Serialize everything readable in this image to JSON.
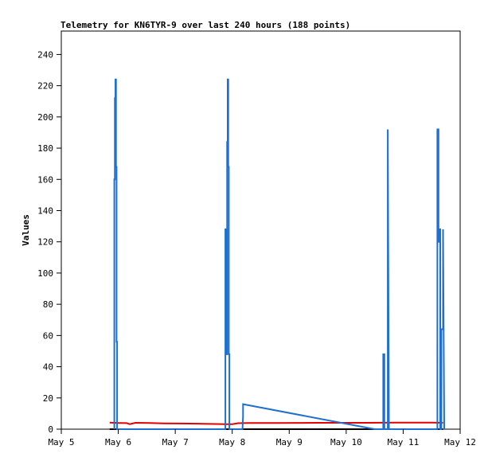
{
  "chart_data": {
    "type": "line",
    "title": "Telemetry for KN6TYR-9 over last 240 hours (188 points)",
    "ylabel": "Values",
    "xlabel": "",
    "ylim": [
      0,
      255
    ],
    "xlim": [
      0,
      7
    ],
    "y_ticks": [
      0,
      20,
      40,
      60,
      80,
      100,
      120,
      140,
      160,
      180,
      200,
      220,
      240
    ],
    "x_ticks": [
      {
        "label": "May 5",
        "value": 0
      },
      {
        "label": "May 6",
        "value": 1
      },
      {
        "label": "May 7",
        "value": 2
      },
      {
        "label": "May 8",
        "value": 3
      },
      {
        "label": "May 9",
        "value": 4
      },
      {
        "label": "May 10",
        "value": 5
      },
      {
        "label": "May 11",
        "value": 6
      },
      {
        "label": "May 12",
        "value": 7
      }
    ],
    "grid": false,
    "colors": {
      "red_series": "#e00000",
      "blue_series": "#1f6fd0",
      "black_series": "#000000"
    },
    "series": [
      {
        "color": "#e00000",
        "x": [
          0.85,
          1.0,
          1.15,
          1.2,
          1.3,
          1.55,
          1.8,
          2.1,
          2.4,
          2.7,
          2.9,
          3.0,
          3.1,
          3.3,
          3.8,
          4.5,
          5.3,
          5.9,
          6.5,
          6.7
        ],
        "y": [
          4.2,
          4.0,
          3.9,
          3.2,
          4.1,
          4.0,
          3.7,
          3.6,
          3.5,
          3.3,
          3.2,
          3.2,
          3.8,
          4.0,
          4.0,
          4.1,
          4.1,
          4.2,
          4.2,
          4.1
        ]
      },
      {
        "color": "#000000",
        "x": [
          0.85,
          6.7
        ],
        "y": [
          0,
          0
        ]
      },
      {
        "color": "#1f6fd0",
        "x": [
          0.93,
          0.93,
          0.94,
          0.94,
          0.95,
          0.95,
          0.96,
          0.96,
          0.97,
          0.97,
          0.98,
          0.98,
          0.99,
          0.99,
          2.88,
          2.88,
          2.89,
          2.89,
          2.9,
          2.9,
          2.91,
          2.91,
          2.92,
          2.92,
          2.93,
          2.93,
          2.94,
          2.94,
          2.95,
          2.95,
          3.18,
          3.19,
          3.19,
          5.5,
          5.65,
          5.65,
          5.67,
          5.67,
          5.73,
          5.73,
          5.75,
          6.6,
          6.6,
          6.62,
          6.62,
          6.63,
          6.63,
          6.65,
          6.65,
          6.67,
          6.67,
          6.7,
          6.7,
          6.72
        ],
        "y": [
          0,
          160,
          160,
          212,
          212,
          224,
          224,
          168,
          168,
          56,
          56,
          0,
          0,
          0,
          0,
          128,
          128,
          64,
          64,
          48,
          48,
          184,
          184,
          224,
          224,
          168,
          168,
          48,
          48,
          0,
          0,
          8,
          16,
          0,
          0,
          48,
          48,
          0,
          0,
          192,
          0,
          0,
          192,
          192,
          120,
          120,
          128,
          128,
          0,
          0,
          64,
          64,
          128,
          0
        ]
      }
    ]
  }
}
